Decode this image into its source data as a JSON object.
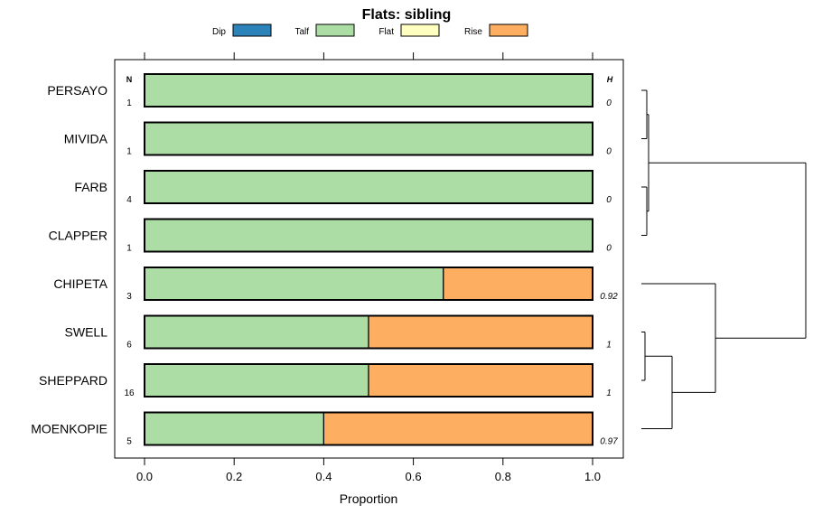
{
  "chart_data": {
    "type": "bar",
    "orientation": "horizontal",
    "stacked": true,
    "title": "Flats: sibling",
    "xlabel": "Proportion",
    "xlim": [
      0,
      1
    ],
    "xticks": [
      "0.0",
      "0.2",
      "0.4",
      "0.6",
      "0.8",
      "1.0"
    ],
    "xtick_values": [
      0,
      0.2,
      0.4,
      0.6,
      0.8,
      1.0
    ],
    "legend_position": "top",
    "n_header": "N",
    "h_header": "H",
    "categories": [
      "PERSAYO",
      "MIVIDA",
      "FARB",
      "CLAPPER",
      "CHIPETA",
      "SWELL",
      "SHEPPARD",
      "MOENKOPIE"
    ],
    "n_values": [
      "1",
      "1",
      "4",
      "1",
      "3",
      "6",
      "16",
      "5"
    ],
    "h_values": [
      "0",
      "0",
      "0",
      "0",
      "0.92",
      "1",
      "1",
      "0.97"
    ],
    "series": [
      {
        "name": "Dip",
        "color": "#2b83ba",
        "values": [
          0,
          0,
          0,
          0,
          0,
          0,
          0,
          0
        ]
      },
      {
        "name": "Talf",
        "color": "#abdda4",
        "values": [
          1,
          1,
          1,
          1,
          0.667,
          0.5,
          0.5,
          0.4
        ]
      },
      {
        "name": "Flat",
        "color": "#ffffbf",
        "values": [
          0,
          0,
          0,
          0,
          0,
          0,
          0,
          0
        ]
      },
      {
        "name": "Rise",
        "color": "#fdae61",
        "values": [
          0,
          0,
          0,
          0,
          0.333,
          0.5,
          0.5,
          0.6
        ]
      }
    ],
    "dendrogram": "right"
  }
}
